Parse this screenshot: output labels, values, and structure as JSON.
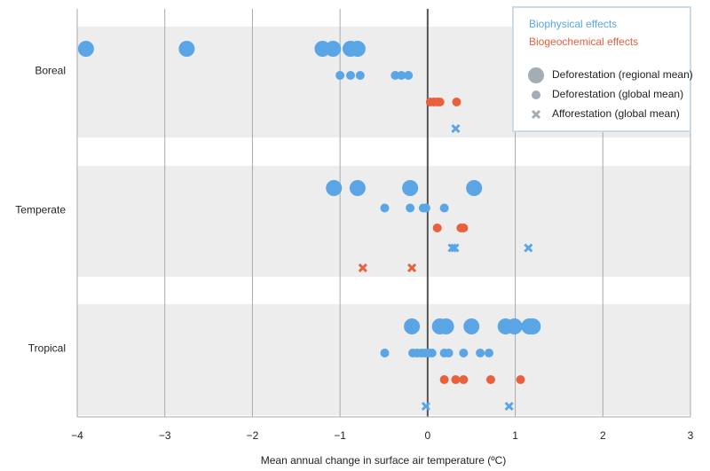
{
  "chart_data": {
    "type": "dot",
    "xlabel": "Mean annual change in surface air temperature (ºC)",
    "xlim": [
      -4,
      3
    ],
    "xticks": [
      {
        "value": -4,
        "label": "−4"
      },
      {
        "value": -3,
        "label": "−3"
      },
      {
        "value": -2,
        "label": "−2"
      },
      {
        "value": -1,
        "label": "−1"
      },
      0,
      1,
      2,
      3
    ],
    "grid": true,
    "categories": [
      "Boreal",
      "Temperate",
      "Tropical"
    ],
    "groups": [
      {
        "series": [
          {
            "color": "#5aa5e6",
            "marker": "large",
            "x": [
              -3.9,
              -2.75,
              -1.2,
              -1.08,
              -0.88,
              -0.8
            ]
          },
          {
            "color": "#5aa5e6",
            "marker": "small",
            "x": [
              -1.0,
              -0.88,
              -0.77,
              -0.37,
              -0.3,
              -0.22
            ]
          },
          {
            "color": "#e8603c",
            "marker": "small",
            "x": [
              0.03,
              0.07,
              0.11,
              0.14,
              0.33
            ]
          },
          {
            "color": "#5aa5e6",
            "marker": "cross",
            "x": [
              0.32
            ]
          }
        ]
      },
      {
        "series": [
          {
            "color": "#5aa5e6",
            "marker": "large",
            "x": [
              -1.07,
              -0.8,
              -0.2,
              0.53
            ]
          },
          {
            "color": "#5aa5e6",
            "marker": "small",
            "x": [
              -0.49,
              -0.2,
              -0.05,
              -0.02,
              0.19
            ]
          },
          {
            "color": "#e8603c",
            "marker": "small",
            "x": [
              0.11,
              0.38,
              0.41
            ]
          },
          {
            "color": "#5aa5e6",
            "marker": "cross",
            "x": [
              0.28,
              0.31,
              1.15
            ]
          },
          {
            "color": "#e8603c",
            "marker": "cross",
            "x": [
              -0.74,
              -0.18
            ]
          }
        ]
      },
      {
        "series": [
          {
            "color": "#5aa5e6",
            "marker": "large",
            "x": [
              -0.18,
              0.14,
              0.21,
              0.5,
              0.89,
              0.99,
              1.16,
              1.2
            ]
          },
          {
            "color": "#5aa5e6",
            "marker": "small",
            "x": [
              -0.49,
              -0.17,
              -0.12,
              -0.07,
              -0.03,
              0.01,
              0.05,
              0.19,
              0.24,
              0.41,
              0.6,
              0.7
            ]
          },
          {
            "color": "#e8603c",
            "marker": "small",
            "x": [
              0.19,
              0.32,
              0.41,
              0.72,
              1.06
            ]
          },
          {
            "color": "#5aa5e6",
            "marker": "cross",
            "x": [
              -0.02,
              0.93
            ]
          }
        ]
      }
    ],
    "legend": {
      "position": "top-right",
      "marker_color": "#a3adb3",
      "effects": [
        {
          "name": "Biophysical effects",
          "color": "#5aa5e6"
        },
        {
          "name": "Biogeochemical effects",
          "color": "#e8603c"
        }
      ],
      "markers": [
        {
          "name": "Deforestation (regional mean)",
          "marker": "large"
        },
        {
          "name": "Deforestation (global mean)",
          "marker": "small"
        },
        {
          "name": "Afforestation (global mean)",
          "marker": "cross"
        }
      ]
    }
  }
}
